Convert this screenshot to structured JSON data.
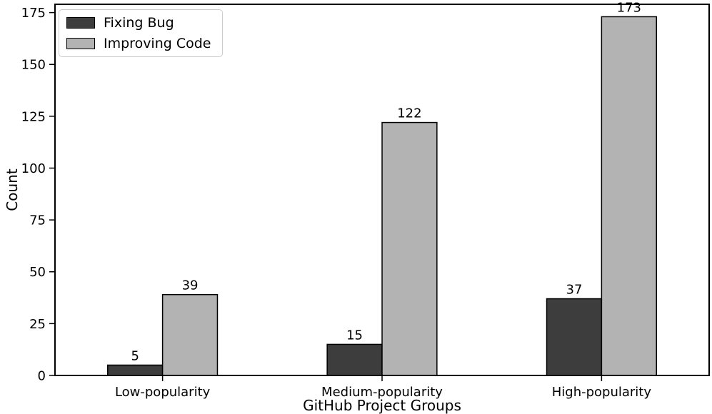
{
  "chart_data": {
    "type": "bar",
    "title": "",
    "xlabel": "GitHub Project Groups",
    "ylabel": "Count",
    "categories": [
      "Low-popularity",
      "Medium-popularity",
      "High-popularity"
    ],
    "series": [
      {
        "name": "Fixing Bug",
        "values": [
          5,
          15,
          37
        ],
        "color": "#3d3d3d"
      },
      {
        "name": "Improving Code",
        "values": [
          39,
          122,
          173
        ],
        "color": "#b3b3b3"
      }
    ],
    "value_labels": true,
    "yticks": [
      0,
      25,
      50,
      75,
      100,
      125,
      150,
      175
    ],
    "ylim": [
      0,
      179
    ],
    "xlim": [
      -0.49,
      2.49
    ],
    "bar_width_units": 0.25,
    "grid": false,
    "legend_position": "upper left",
    "colors": {
      "bar_edge": "#000000",
      "axes": "#000000",
      "text": "#000000",
      "legend_border": "#cccccc",
      "background": "#ffffff"
    }
  }
}
